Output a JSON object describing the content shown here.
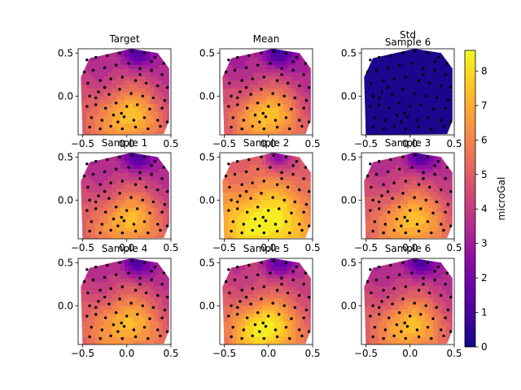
{
  "chart_data": {
    "type": "contour",
    "colorbar": {
      "label": "microGal",
      "ticks": [
        0,
        1,
        2,
        3,
        4,
        5,
        6,
        7,
        8
      ],
      "range": [
        0,
        8.6
      ],
      "colormap": "plasma"
    },
    "x_ticks": [
      "−0.5",
      "0.0",
      "0.5"
    ],
    "y_ticks": [
      "0.5",
      "0.0"
    ],
    "xlim": [
      -0.55,
      0.5
    ],
    "ylim": [
      -0.45,
      0.55
    ],
    "panels": [
      {
        "title": "Target",
        "hotspot": [
          0.0,
          -0.22
        ],
        "base": 4.2,
        "peak": 7.5,
        "spread": 0.22,
        "low": [
          0.1,
          0.5
        ]
      },
      {
        "title": "Mean",
        "hotspot": [
          -0.03,
          -0.22
        ],
        "base": 4.0,
        "peak": 7.6,
        "spread": 0.22,
        "low": [
          0.1,
          0.5
        ]
      },
      {
        "title": "Std",
        "hotspot": [
          0.0,
          0.0
        ],
        "base": 0.25,
        "peak": 0.35,
        "spread": 0.5,
        "low": [
          0.1,
          0.5
        ]
      },
      {
        "title": "Sample 1",
        "hotspot": [
          0.0,
          -0.22
        ],
        "base": 4.2,
        "peak": 7.3,
        "spread": 0.22,
        "low": [
          0.1,
          0.5
        ]
      },
      {
        "title": "Sample 2",
        "hotspot": [
          -0.05,
          -0.22
        ],
        "base": 5.8,
        "peak": 8.6,
        "spread": 0.25,
        "low": [
          0.1,
          0.5
        ]
      },
      {
        "title": "Sample 3",
        "hotspot": [
          0.0,
          -0.22
        ],
        "base": 4.4,
        "peak": 7.4,
        "spread": 0.22,
        "low": [
          0.1,
          0.5
        ]
      },
      {
        "title": "Sample 4",
        "hotspot": [
          -0.02,
          -0.2
        ],
        "base": 4.3,
        "peak": 7.3,
        "spread": 0.23,
        "low": [
          0.1,
          0.5
        ]
      },
      {
        "title": "Sample 5",
        "hotspot": [
          -0.05,
          -0.25
        ],
        "base": 4.6,
        "peak": 8.6,
        "spread": 0.22,
        "low": [
          0.1,
          0.5
        ]
      },
      {
        "title": "Sample 6",
        "hotspot": [
          -0.02,
          -0.22
        ],
        "base": 4.2,
        "peak": 7.4,
        "spread": 0.22,
        "low": [
          0.1,
          0.5
        ]
      }
    ],
    "stations": [
      [
        -0.45,
        0.42
      ],
      [
        -0.35,
        0.45
      ],
      [
        -0.22,
        0.47
      ],
      [
        -0.08,
        0.5
      ],
      [
        0.06,
        0.52
      ],
      [
        0.2,
        0.5
      ],
      [
        0.32,
        0.45
      ],
      [
        0.42,
        0.38
      ],
      [
        -0.48,
        0.28
      ],
      [
        -0.38,
        0.3
      ],
      [
        -0.25,
        0.33
      ],
      [
        -0.12,
        0.36
      ],
      [
        0.02,
        0.38
      ],
      [
        0.15,
        0.32
      ],
      [
        0.28,
        0.3
      ],
      [
        0.4,
        0.25
      ],
      [
        -0.44,
        0.15
      ],
      [
        -0.3,
        0.18
      ],
      [
        -0.18,
        0.2
      ],
      [
        -0.05,
        0.22
      ],
      [
        0.1,
        0.18
      ],
      [
        0.22,
        0.15
      ],
      [
        0.35,
        0.12
      ],
      [
        0.46,
        0.1
      ],
      [
        -0.42,
        0.0
      ],
      [
        -0.32,
        0.05
      ],
      [
        -0.2,
        0.02
      ],
      [
        -0.08,
        0.08
      ],
      [
        0.05,
        0.03
      ],
      [
        0.18,
        0.0
      ],
      [
        0.3,
        -0.02
      ],
      [
        0.43,
        -0.05
      ],
      [
        -0.45,
        -0.12
      ],
      [
        -0.35,
        -0.1
      ],
      [
        -0.24,
        -0.14
      ],
      [
        -0.12,
        -0.08
      ],
      [
        0.0,
        -0.12
      ],
      [
        0.12,
        -0.1
      ],
      [
        0.26,
        -0.15
      ],
      [
        0.4,
        -0.14
      ],
      [
        -0.4,
        -0.25
      ],
      [
        -0.28,
        -0.28
      ],
      [
        -0.15,
        -0.22
      ],
      [
        -0.06,
        -0.2
      ],
      [
        -0.03,
        -0.24
      ],
      [
        0.08,
        -0.28
      ],
      [
        0.2,
        -0.25
      ],
      [
        0.35,
        -0.28
      ],
      [
        -0.42,
        -0.36
      ],
      [
        -0.3,
        -0.38
      ],
      [
        -0.18,
        -0.35
      ],
      [
        -0.05,
        -0.38
      ],
      [
        0.1,
        -0.36
      ],
      [
        0.24,
        -0.38
      ],
      [
        0.38,
        -0.35
      ],
      [
        0.46,
        -0.3
      ],
      [
        -0.25,
        0.1
      ],
      [
        0.28,
        0.4
      ],
      [
        -0.1,
        -0.3
      ],
      [
        0.15,
        0.25
      ],
      [
        -0.35,
        -0.02
      ]
    ]
  }
}
